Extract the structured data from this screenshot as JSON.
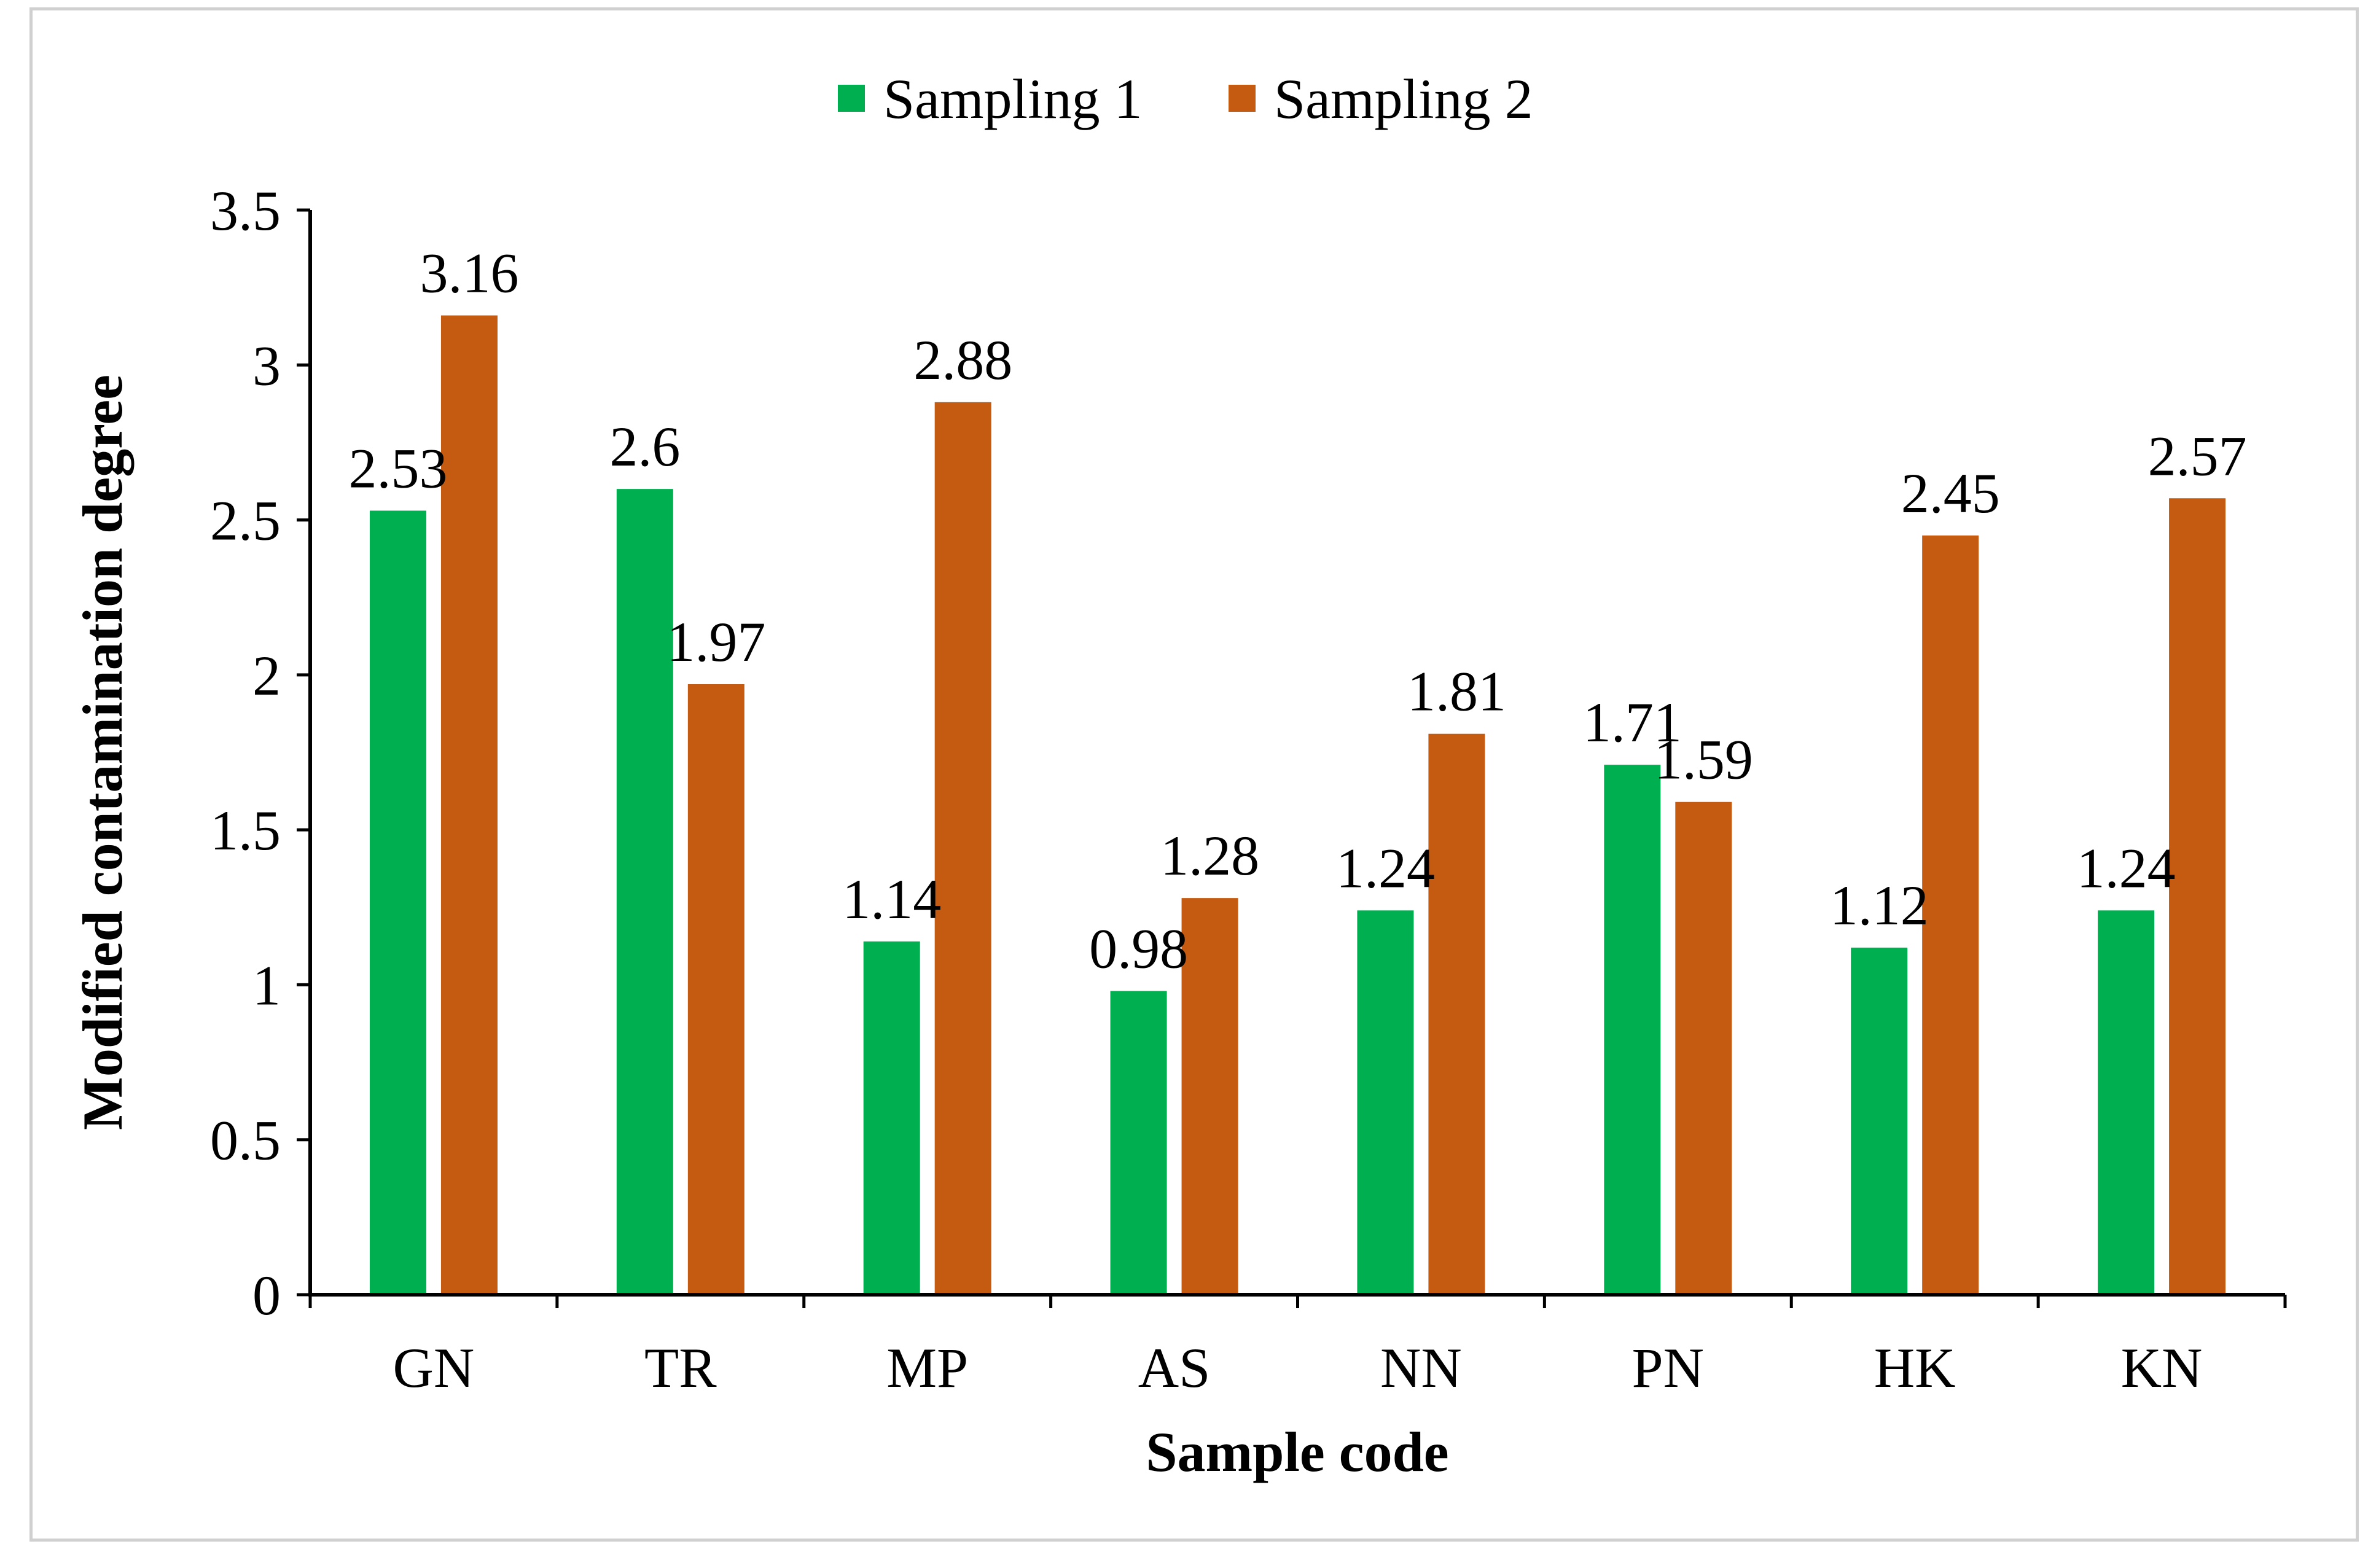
{
  "chart_data": {
    "type": "bar",
    "title": "",
    "xlabel": "Sample code",
    "ylabel": "Modified contamination degree",
    "categories": [
      "GN",
      "TR",
      "MP",
      "AS",
      "NN",
      "PN",
      "HK",
      "KN"
    ],
    "series": [
      {
        "name": "Sampling 1",
        "color": "#00b050",
        "values": [
          2.53,
          2.6,
          1.14,
          0.98,
          1.24,
          1.71,
          1.12,
          1.24
        ],
        "labels": [
          "2.53",
          "2.6",
          "1.14",
          "0.98",
          "1.24",
          "1.71",
          "1.12",
          "1.24"
        ]
      },
      {
        "name": "Sampling 2",
        "color": "#c55a11",
        "values": [
          3.16,
          1.97,
          2.88,
          1.28,
          1.81,
          1.59,
          2.45,
          2.57
        ],
        "labels": [
          "3.16",
          "1.97",
          "2.88",
          "1.28",
          "1.81",
          "1.59",
          "2.45",
          "2.57"
        ]
      }
    ],
    "ylim": [
      0,
      3.5
    ],
    "yticks": [
      "0",
      "0.5",
      "1",
      "1.5",
      "2",
      "2.5",
      "3",
      "3.5"
    ],
    "grid": false,
    "legend": "top-center"
  }
}
